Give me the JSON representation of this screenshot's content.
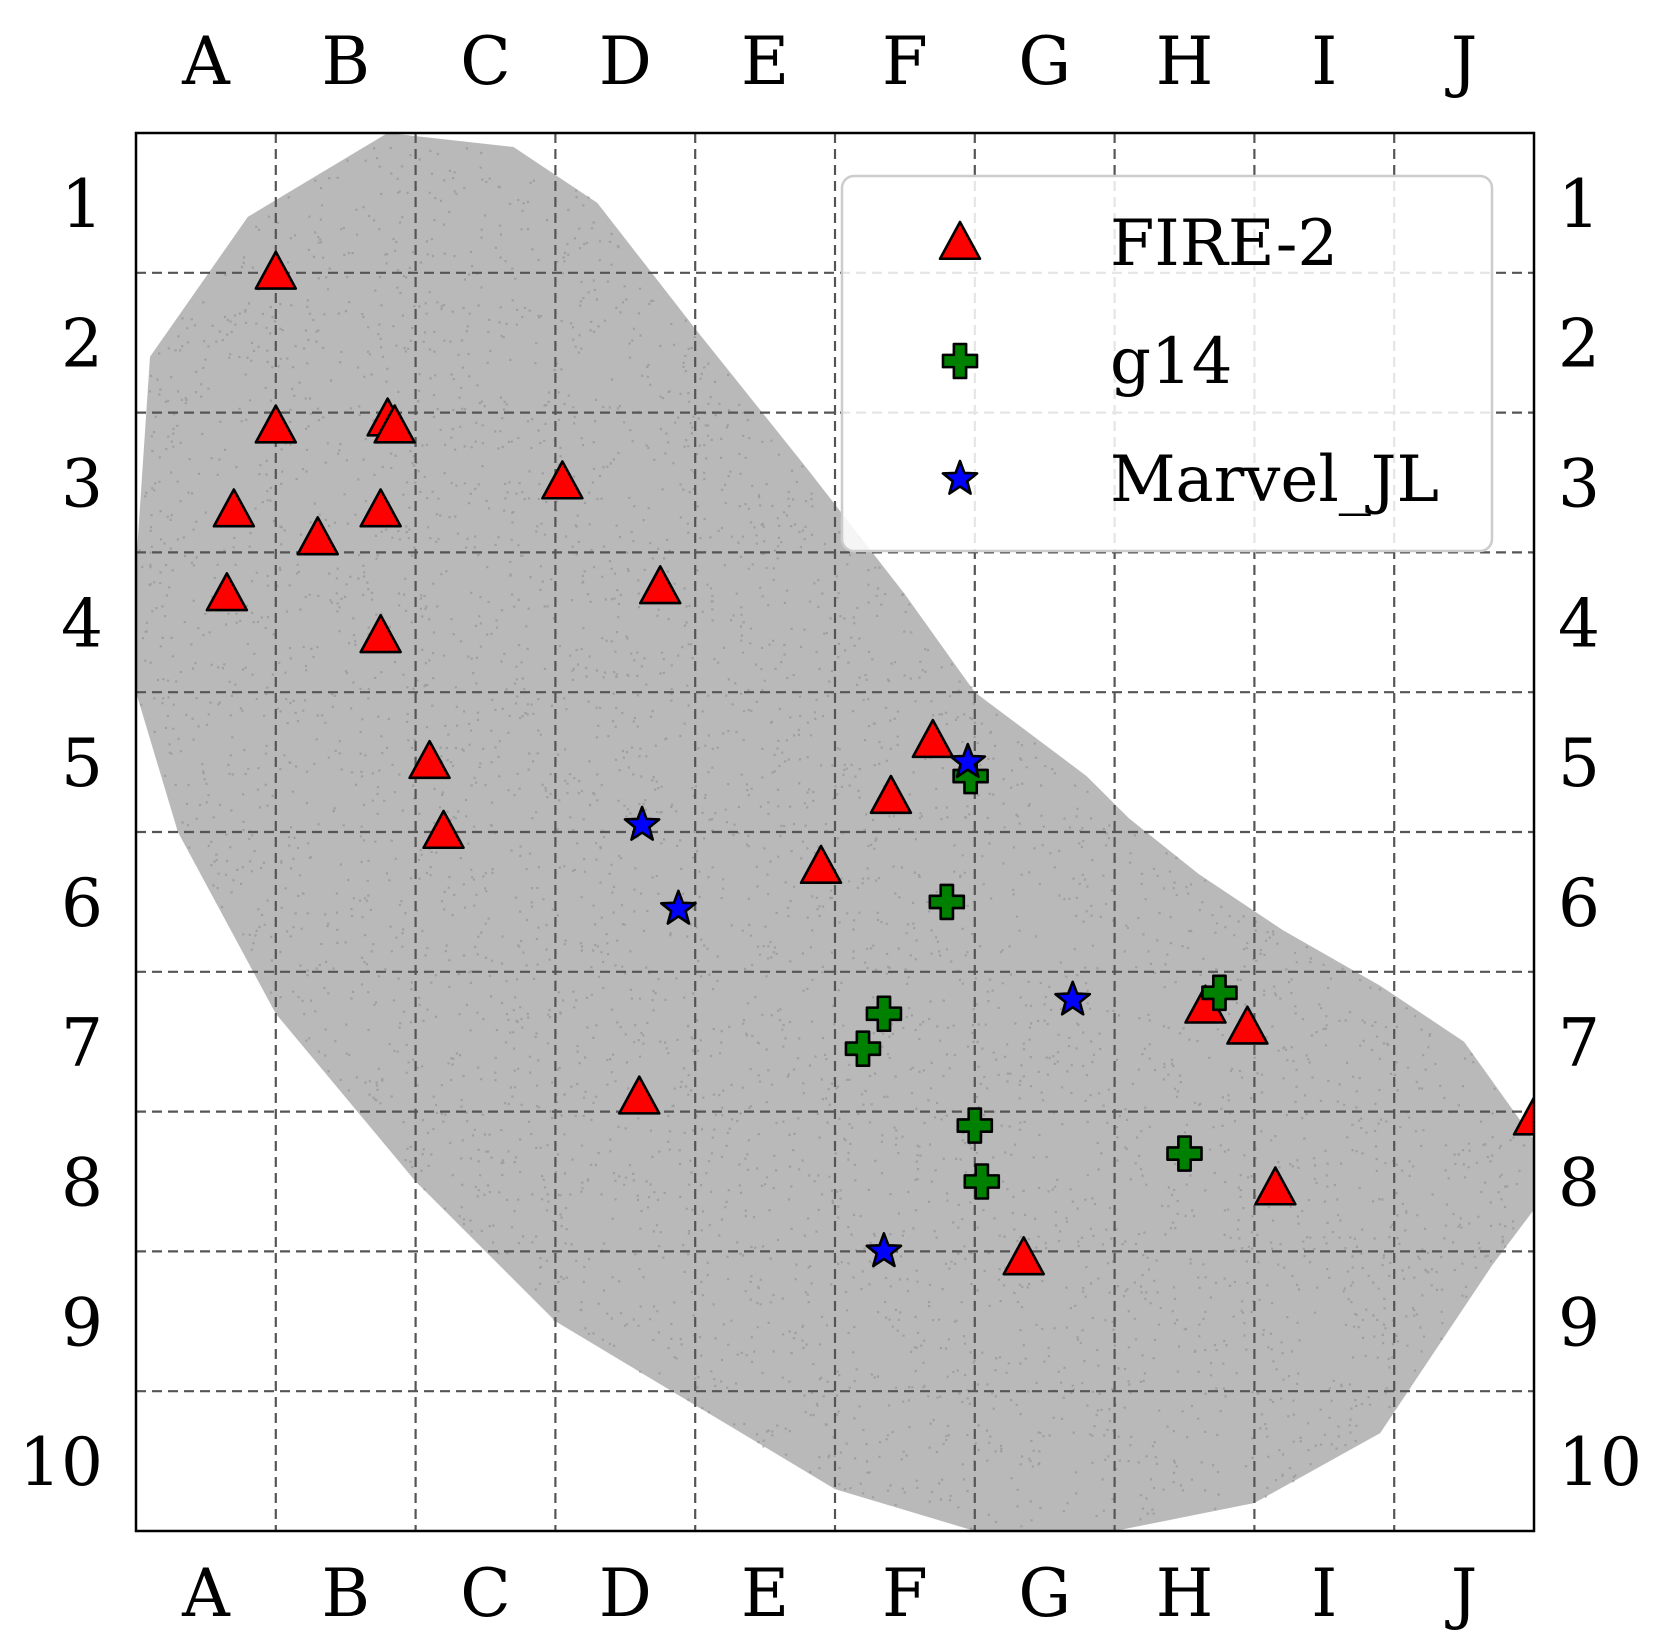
{
  "chart_data": {
    "type": "scatter",
    "title": "",
    "xlabel": "",
    "ylabel": "",
    "x_tick_labels": [
      "A",
      "B",
      "C",
      "D",
      "E",
      "F",
      "G",
      "H",
      "I",
      "J"
    ],
    "y_tick_labels": [
      "1",
      "2",
      "3",
      "4",
      "5",
      "6",
      "7",
      "8",
      "9",
      "10"
    ],
    "xlim": [
      0,
      10
    ],
    "ylim": [
      10,
      0
    ],
    "y_inverted": true,
    "grid": true,
    "grid_style": "dashed",
    "legend_position": "top-right",
    "background_cloud": {
      "color": "#808080",
      "description_of_region": "dense gray point cloud",
      "outline": [
        [
          0.0,
          3.1
        ],
        [
          0.1,
          1.6
        ],
        [
          0.8,
          0.6
        ],
        [
          1.8,
          0.0
        ],
        [
          2.7,
          0.1
        ],
        [
          3.3,
          0.5
        ],
        [
          4.0,
          1.4
        ],
        [
          4.8,
          2.4
        ],
        [
          5.5,
          3.3
        ],
        [
          6.0,
          4.0
        ],
        [
          6.4,
          4.3
        ],
        [
          6.8,
          4.6
        ],
        [
          7.1,
          4.9
        ],
        [
          7.6,
          5.3
        ],
        [
          8.2,
          5.7
        ],
        [
          8.9,
          6.1
        ],
        [
          9.5,
          6.5
        ],
        [
          10.0,
          7.2
        ],
        [
          10.0,
          7.7
        ],
        [
          9.7,
          8.1
        ],
        [
          9.3,
          8.7
        ],
        [
          8.9,
          9.3
        ],
        [
          8.0,
          9.8
        ],
        [
          7.0,
          10.0
        ],
        [
          6.0,
          10.0
        ],
        [
          5.0,
          9.7
        ],
        [
          4.0,
          9.1
        ],
        [
          3.0,
          8.5
        ],
        [
          2.0,
          7.5
        ],
        [
          1.0,
          6.3
        ],
        [
          0.3,
          5.0
        ],
        [
          0.0,
          4.0
        ]
      ]
    },
    "series": [
      {
        "name": "FIRE-2",
        "marker": "triangle",
        "color": "#ff0000",
        "points": [
          [
            1.0,
            1.0
          ],
          [
            1.0,
            2.1
          ],
          [
            0.7,
            2.7
          ],
          [
            1.3,
            2.9
          ],
          [
            0.65,
            3.3
          ],
          [
            1.8,
            2.05
          ],
          [
            1.85,
            2.1
          ],
          [
            1.75,
            2.7
          ],
          [
            1.75,
            3.6
          ],
          [
            3.05,
            2.5
          ],
          [
            3.75,
            3.25
          ],
          [
            2.1,
            4.5
          ],
          [
            2.2,
            5.0
          ],
          [
            5.7,
            4.35
          ],
          [
            5.4,
            4.75
          ],
          [
            4.9,
            5.25
          ],
          [
            3.6,
            6.9
          ],
          [
            7.65,
            6.25
          ],
          [
            7.95,
            6.4
          ],
          [
            10.0,
            7.05
          ],
          [
            8.15,
            7.55
          ],
          [
            6.35,
            8.05
          ]
        ]
      },
      {
        "name": "g14",
        "marker": "plus",
        "color": "#008000",
        "points": [
          [
            5.97,
            4.6
          ],
          [
            5.8,
            5.5
          ],
          [
            7.75,
            6.15
          ],
          [
            5.35,
            6.3
          ],
          [
            5.2,
            6.55
          ],
          [
            6.0,
            7.1
          ],
          [
            6.05,
            7.5
          ],
          [
            7.5,
            7.3
          ]
        ]
      },
      {
        "name": "Marvel_JL",
        "marker": "star",
        "color": "#0000ff",
        "points": [
          [
            5.95,
            4.5
          ],
          [
            3.62,
            4.95
          ],
          [
            3.88,
            5.55
          ],
          [
            6.7,
            6.2
          ],
          [
            5.35,
            8.0
          ]
        ]
      }
    ]
  }
}
